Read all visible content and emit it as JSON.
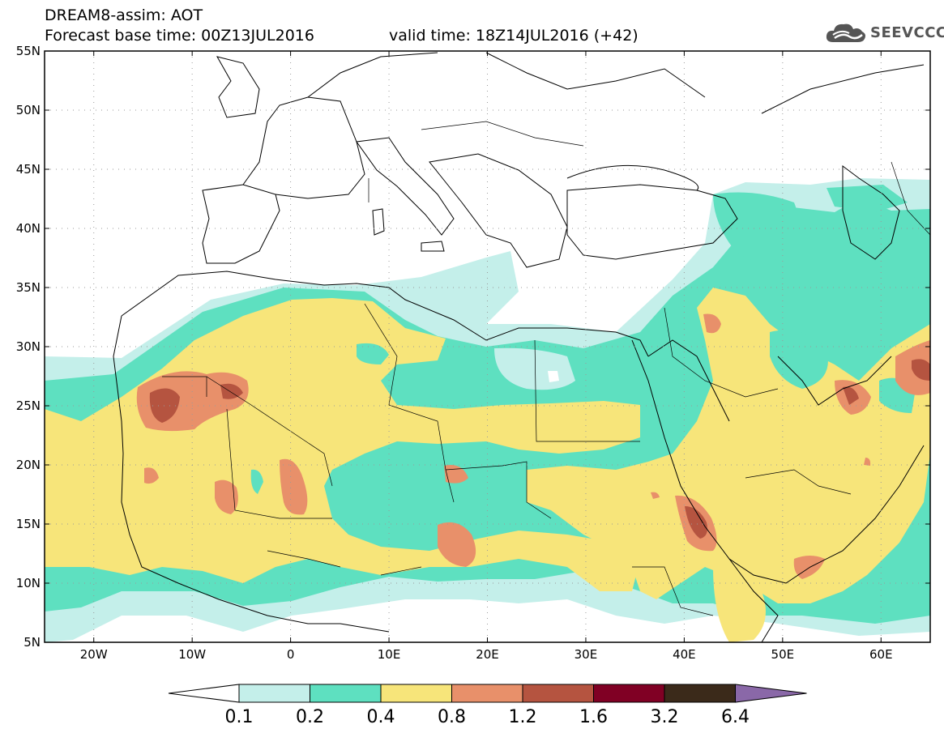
{
  "title": {
    "line1": "DREAM8-assim: AOT",
    "base_time": "Forecast base time: 00Z13JUL2016",
    "valid_time": "valid time: 18Z14JUL2016 (+42)"
  },
  "logo": {
    "text": "SEEVCCC",
    "icon": "cloud-icon",
    "color": "#555555"
  },
  "axes": {
    "lat_labels": [
      "55N",
      "50N",
      "45N",
      "40N",
      "35N",
      "30N",
      "25N",
      "20N",
      "15N",
      "10N",
      "5N"
    ],
    "lat_values": [
      55,
      50,
      45,
      40,
      35,
      30,
      25,
      20,
      15,
      10,
      5
    ],
    "lon_labels": [
      "20W",
      "10W",
      "0",
      "10E",
      "20E",
      "30E",
      "40E",
      "50E",
      "60E"
    ],
    "lon_values": [
      -20,
      -10,
      0,
      10,
      20,
      30,
      40,
      50,
      60
    ],
    "lon_range": [
      -25,
      65
    ],
    "lat_range": [
      5,
      55
    ],
    "grid": "dotted"
  },
  "colorbar": {
    "labels": [
      "0.1",
      "0.2",
      "0.4",
      "0.8",
      "1.2",
      "1.6",
      "3.2",
      "6.4"
    ],
    "colors": [
      "#ffffff",
      "#c4efea",
      "#5ee0c0",
      "#f7e57a",
      "#e8906a",
      "#b55440",
      "#800024",
      "#3b2a1a",
      "#8a68a8"
    ]
  },
  "colors": {
    "c1": "#c4efea",
    "c2": "#5ee0c0",
    "c3": "#f7e57a",
    "c4": "#e8906a",
    "c5": "#b55440"
  }
}
